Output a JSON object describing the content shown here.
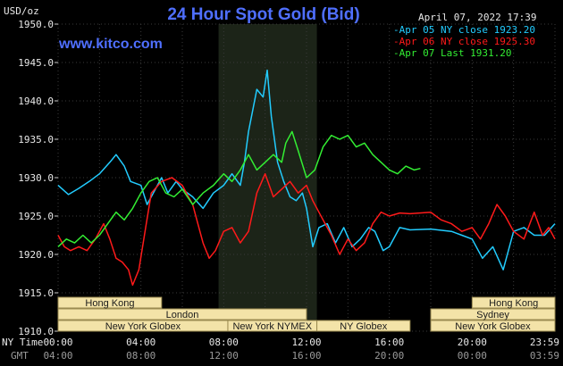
{
  "chart_data": {
    "type": "line",
    "title": "24 Hour Spot Gold (Bid)",
    "site": "www.kitco.com",
    "timestamp": "April 07, 2022 17:39",
    "ylabel": "USD/oz",
    "ylim": [
      1910,
      1950
    ],
    "yticks": [
      "1950.0",
      "1945.0",
      "1940.0",
      "1935.0",
      "1930.0",
      "1925.0",
      "1920.0",
      "1915.0",
      "1910.0"
    ],
    "x_axis_label_ny": "NY Time",
    "x_axis_label_gmt": "GMT",
    "xticks_ny": [
      "00:00",
      "04:00",
      "08:00",
      "12:00",
      "16:00",
      "20:00",
      "23:59"
    ],
    "xticks_gmt": [
      "04:00",
      "08:00",
      "12:00",
      "16:00",
      "20:00",
      "00:00",
      "03:59"
    ],
    "grid": true,
    "legend_position": "top-right",
    "highlight_region_hours": [
      7.75,
      12.5
    ],
    "sessions": [
      {
        "label": "Hong Kong",
        "row": 0,
        "start": 0,
        "end": 5
      },
      {
        "label": "London",
        "row": 1,
        "start": 0,
        "end": 12
      },
      {
        "label": "New York Globex",
        "row": 2,
        "start": 0,
        "end": 8.2
      },
      {
        "label": "New York NYMEX",
        "row": 2,
        "start": 8.2,
        "end": 12.5
      },
      {
        "label": "NY Globex",
        "row": 2,
        "start": 12.5,
        "end": 17
      },
      {
        "label": "Hong Kong",
        "row": 0,
        "start": 20,
        "end": 24
      },
      {
        "label": "Sydney",
        "row": 1,
        "start": 18,
        "end": 24
      },
      {
        "label": "New York Globex",
        "row": 2,
        "start": 18,
        "end": 24
      }
    ],
    "series": [
      {
        "name": "Apr 05 NY close 1923.20",
        "color": "#22ccff",
        "points": [
          [
            0,
            1929.0
          ],
          [
            0.5,
            1927.8
          ],
          [
            1,
            1928.6
          ],
          [
            1.5,
            1929.5
          ],
          [
            2,
            1930.5
          ],
          [
            2.5,
            1932.0
          ],
          [
            2.8,
            1933.0
          ],
          [
            3.2,
            1931.5
          ],
          [
            3.5,
            1929.5
          ],
          [
            4,
            1929.0
          ],
          [
            4.3,
            1926.5
          ],
          [
            4.6,
            1928.0
          ],
          [
            5,
            1930.0
          ],
          [
            5.3,
            1928.0
          ],
          [
            5.7,
            1929.5
          ],
          [
            6,
            1928.5
          ],
          [
            6.5,
            1927.5
          ],
          [
            7,
            1926.0
          ],
          [
            7.5,
            1928.0
          ],
          [
            8,
            1929.0
          ],
          [
            8.4,
            1930.5
          ],
          [
            8.8,
            1929.0
          ],
          [
            9,
            1932.0
          ],
          [
            9.2,
            1936.0
          ],
          [
            9.6,
            1941.5
          ],
          [
            9.9,
            1940.5
          ],
          [
            10.1,
            1944.0
          ],
          [
            10.3,
            1938.0
          ],
          [
            10.6,
            1932.0
          ],
          [
            10.9,
            1929.5
          ],
          [
            11.2,
            1927.5
          ],
          [
            11.5,
            1927.0
          ],
          [
            11.8,
            1928.0
          ],
          [
            12.0,
            1926.0
          ],
          [
            12.3,
            1921.0
          ],
          [
            12.6,
            1923.5
          ],
          [
            13,
            1924.0
          ],
          [
            13.4,
            1921.5
          ],
          [
            13.8,
            1923.5
          ],
          [
            14.2,
            1921.0
          ],
          [
            14.6,
            1922.0
          ],
          [
            15.0,
            1923.5
          ],
          [
            15.3,
            1923.0
          ],
          [
            15.7,
            1920.5
          ],
          [
            16.0,
            1921.0
          ],
          [
            16.5,
            1923.5
          ],
          [
            17,
            1923.2
          ],
          [
            18,
            1923.3
          ],
          [
            19,
            1923.0
          ],
          [
            19.5,
            1922.5
          ],
          [
            20,
            1922.0
          ],
          [
            20.5,
            1919.5
          ],
          [
            21,
            1921.0
          ],
          [
            21.5,
            1918.0
          ],
          [
            22,
            1923.0
          ],
          [
            22.5,
            1923.5
          ],
          [
            23,
            1922.5
          ],
          [
            23.5,
            1922.5
          ],
          [
            24,
            1924.0
          ]
        ]
      },
      {
        "name": "Apr 06 NY close 1925.30",
        "color": "#ff1a1a",
        "points": [
          [
            0,
            1922.5
          ],
          [
            0.3,
            1921.0
          ],
          [
            0.6,
            1920.5
          ],
          [
            1,
            1921.0
          ],
          [
            1.4,
            1920.5
          ],
          [
            1.8,
            1922.0
          ],
          [
            2.2,
            1924.0
          ],
          [
            2.5,
            1922.0
          ],
          [
            2.8,
            1919.5
          ],
          [
            3.1,
            1919.0
          ],
          [
            3.4,
            1918.0
          ],
          [
            3.6,
            1916.0
          ],
          [
            3.9,
            1918.0
          ],
          [
            4.2,
            1923.0
          ],
          [
            4.5,
            1928.0
          ],
          [
            5,
            1929.5
          ],
          [
            5.5,
            1930.0
          ],
          [
            6,
            1929.0
          ],
          [
            6.5,
            1926.5
          ],
          [
            7,
            1921.5
          ],
          [
            7.3,
            1919.5
          ],
          [
            7.6,
            1920.5
          ],
          [
            8,
            1923.0
          ],
          [
            8.4,
            1923.5
          ],
          [
            8.8,
            1921.5
          ],
          [
            9.2,
            1923.0
          ],
          [
            9.6,
            1928.0
          ],
          [
            10,
            1930.5
          ],
          [
            10.4,
            1927.5
          ],
          [
            10.8,
            1928.5
          ],
          [
            11.2,
            1929.5
          ],
          [
            11.6,
            1928.0
          ],
          [
            12.0,
            1929.0
          ],
          [
            12.3,
            1927.0
          ],
          [
            12.8,
            1924.5
          ],
          [
            13.2,
            1922.5
          ],
          [
            13.6,
            1920.0
          ],
          [
            14,
            1922.0
          ],
          [
            14.4,
            1920.5
          ],
          [
            14.8,
            1921.5
          ],
          [
            15.2,
            1924.0
          ],
          [
            15.6,
            1925.5
          ],
          [
            16,
            1925.0
          ],
          [
            16.5,
            1925.4
          ],
          [
            17,
            1925.3
          ],
          [
            18,
            1925.5
          ],
          [
            18.5,
            1924.5
          ],
          [
            19,
            1924.0
          ],
          [
            19.5,
            1923.0
          ],
          [
            20,
            1923.5
          ],
          [
            20.4,
            1922.0
          ],
          [
            20.8,
            1924.0
          ],
          [
            21.2,
            1926.5
          ],
          [
            21.6,
            1925.0
          ],
          [
            22,
            1923.0
          ],
          [
            22.5,
            1922.0
          ],
          [
            23,
            1925.5
          ],
          [
            23.4,
            1922.5
          ],
          [
            23.7,
            1923.5
          ],
          [
            24,
            1922.0
          ]
        ]
      },
      {
        "name": "Apr 07 Last 1931.20",
        "color": "#33ee33",
        "points": [
          [
            0,
            1921.0
          ],
          [
            0.4,
            1922.0
          ],
          [
            0.8,
            1921.5
          ],
          [
            1.2,
            1922.5
          ],
          [
            1.6,
            1921.5
          ],
          [
            2,
            1922.5
          ],
          [
            2.4,
            1924.0
          ],
          [
            2.8,
            1925.5
          ],
          [
            3.2,
            1924.5
          ],
          [
            3.6,
            1926.0
          ],
          [
            4,
            1928.0
          ],
          [
            4.4,
            1929.5
          ],
          [
            4.8,
            1930.0
          ],
          [
            5.2,
            1928.0
          ],
          [
            5.6,
            1927.5
          ],
          [
            6,
            1928.5
          ],
          [
            6.5,
            1926.5
          ],
          [
            7,
            1928.0
          ],
          [
            7.5,
            1929.0
          ],
          [
            8,
            1930.5
          ],
          [
            8.4,
            1929.5
          ],
          [
            8.8,
            1931.0
          ],
          [
            9.2,
            1933.0
          ],
          [
            9.6,
            1931.0
          ],
          [
            10,
            1932.0
          ],
          [
            10.4,
            1933.0
          ],
          [
            10.8,
            1932.0
          ],
          [
            11,
            1934.5
          ],
          [
            11.3,
            1936.0
          ],
          [
            11.6,
            1933.5
          ],
          [
            12,
            1930.0
          ],
          [
            12.4,
            1931.0
          ],
          [
            12.8,
            1934.0
          ],
          [
            13.2,
            1935.5
          ],
          [
            13.6,
            1935.0
          ],
          [
            14,
            1935.5
          ],
          [
            14.4,
            1934.0
          ],
          [
            14.8,
            1934.5
          ],
          [
            15.2,
            1933.0
          ],
          [
            15.6,
            1932.0
          ],
          [
            16,
            1931.0
          ],
          [
            16.4,
            1930.5
          ],
          [
            16.8,
            1931.5
          ],
          [
            17.2,
            1931.0
          ],
          [
            17.5,
            1931.2
          ]
        ]
      }
    ]
  }
}
